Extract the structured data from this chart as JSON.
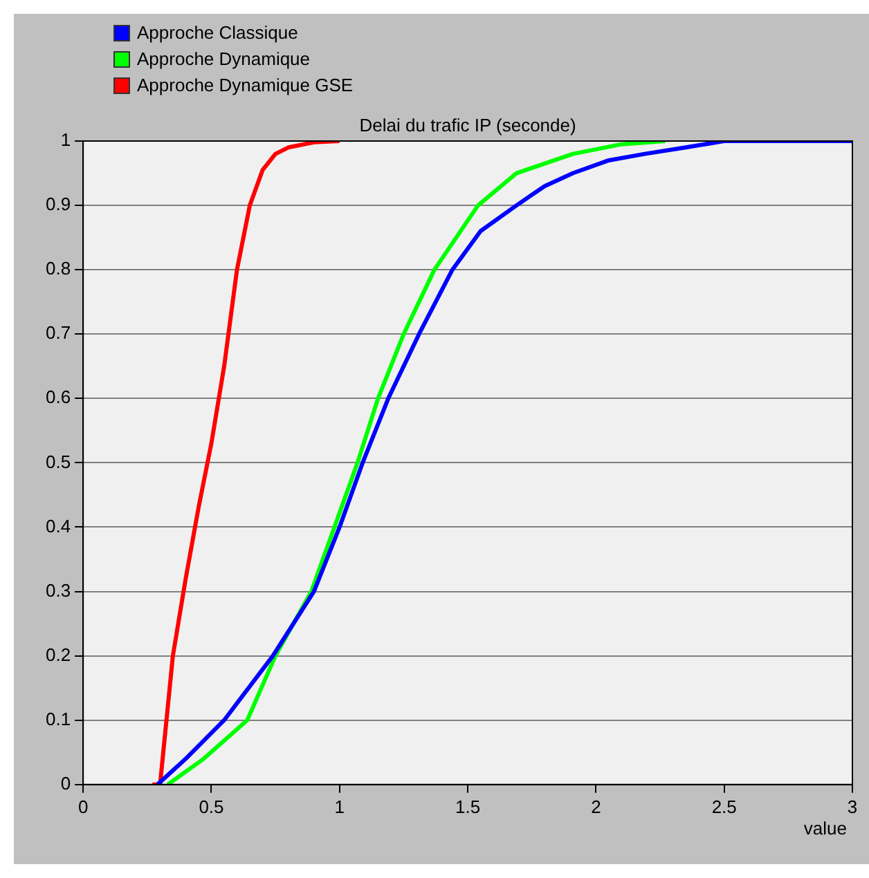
{
  "chart_data": {
    "type": "line",
    "title": "Delai du trafic IP (seconde)",
    "xlabel": "value",
    "xlim": [
      0,
      3
    ],
    "xticks": [
      0,
      0.5,
      1,
      1.5,
      2,
      2.5,
      3
    ],
    "ylim": [
      0,
      1
    ],
    "yticks": [
      0,
      0.1,
      0.2,
      0.3,
      0.4,
      0.5,
      0.6,
      0.7,
      0.8,
      0.9,
      1
    ],
    "grid": "y",
    "legend": "top left",
    "marker": "none",
    "line_style": "solid",
    "series": [
      {
        "name": "Approche Classique",
        "color": "#0000ff",
        "x": [
          0.29,
          0.4,
          0.55,
          0.74,
          0.9,
          1.0,
          1.09,
          1.19,
          1.31,
          1.44,
          1.55,
          1.69,
          1.8,
          1.91,
          2.05,
          2.19,
          2.35,
          2.5,
          3
        ],
        "values": [
          0,
          0.04,
          0.1,
          0.2,
          0.3,
          0.4,
          0.5,
          0.6,
          0.7,
          0.8,
          0.86,
          0.9,
          0.93,
          0.95,
          0.97,
          0.98,
          0.99,
          1,
          1
        ]
      },
      {
        "name": "Approche Dynamique",
        "color": "#00ff00",
        "x": [
          0.33,
          0.47,
          0.64,
          0.75,
          0.89,
          0.98,
          1.07,
          1.15,
          1.25,
          1.37,
          1.54,
          1.69,
          1.91,
          2.1,
          2.27
        ],
        "values": [
          0,
          0.04,
          0.1,
          0.2,
          0.3,
          0.4,
          0.5,
          0.6,
          0.7,
          0.8,
          0.9,
          0.95,
          0.98,
          0.995,
          1
        ]
      },
      {
        "name": "Approche Dynamique GSE",
        "color": "#ff0000",
        "x": [
          0.27,
          0.3,
          0.32,
          0.35,
          0.4,
          0.45,
          0.5,
          0.55,
          0.6,
          0.65,
          0.7,
          0.75,
          0.8,
          0.9,
          1.0
        ],
        "values": [
          0,
          0,
          0.08,
          0.2,
          0.32,
          0.43,
          0.53,
          0.65,
          0.8,
          0.9,
          0.955,
          0.98,
          0.99,
          0.998,
          1
        ]
      }
    ]
  }
}
